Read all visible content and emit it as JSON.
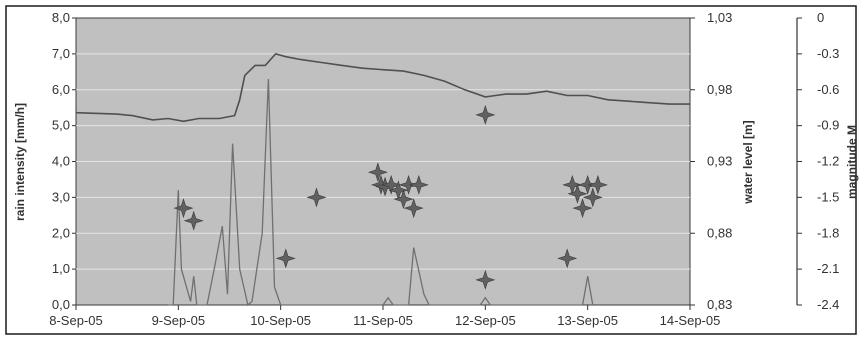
{
  "chart_data": {
    "type": "line",
    "x_tick_labels": [
      "8-Sep-05",
      "9-Sep-05",
      "10-Sep-05",
      "11-Sep-05",
      "12-Sep-05",
      "13-Sep-05",
      "14-Sep-05"
    ],
    "xlim": [
      0,
      6
    ],
    "left_axis": {
      "label": "rain intensity [mm/h]",
      "ylim": [
        0,
        8
      ],
      "tick_labels": [
        "0,0",
        "1,0",
        "2,0",
        "3,0",
        "4,0",
        "5,0",
        "6,0",
        "7,0",
        "8,0"
      ]
    },
    "middle_axis": {
      "label": "water level [m]",
      "ylim": [
        0.83,
        1.03
      ],
      "tick_labels": [
        "0,83",
        "0,88",
        "0,93",
        "0,98",
        "1,03"
      ]
    },
    "right_axis": {
      "label": "magnitude M",
      "ylim": [
        -2.4,
        0
      ],
      "tick_labels": [
        "-2.4",
        "-2.1",
        "-1.8",
        "-1.5",
        "-1.2",
        "-0.9",
        "-0.6",
        "-0.3",
        "0"
      ]
    },
    "plot_background": "#c0c0c0",
    "gridlines": "horizontal",
    "series": [
      {
        "axis": "water_level",
        "color": "#505050",
        "points": [
          [
            0.0,
            0.964
          ],
          [
            0.4,
            0.963
          ],
          [
            0.55,
            0.962
          ],
          [
            0.75,
            0.959
          ],
          [
            0.9,
            0.96
          ],
          [
            1.05,
            0.958
          ],
          [
            1.2,
            0.96
          ],
          [
            1.4,
            0.96
          ],
          [
            1.55,
            0.962
          ],
          [
            1.6,
            0.973
          ],
          [
            1.65,
            0.99
          ],
          [
            1.75,
            0.997
          ],
          [
            1.85,
            0.997
          ],
          [
            1.95,
            1.005
          ],
          [
            2.05,
            1.003
          ],
          [
            2.2,
            1.001
          ],
          [
            2.4,
            0.999
          ],
          [
            2.6,
            0.997
          ],
          [
            2.8,
            0.995
          ],
          [
            3.0,
            0.994
          ],
          [
            3.2,
            0.993
          ],
          [
            3.4,
            0.99
          ],
          [
            3.6,
            0.986
          ],
          [
            3.8,
            0.98
          ],
          [
            4.0,
            0.975
          ],
          [
            4.1,
            0.976
          ],
          [
            4.2,
            0.977
          ],
          [
            4.4,
            0.977
          ],
          [
            4.6,
            0.979
          ],
          [
            4.8,
            0.976
          ],
          [
            5.0,
            0.976
          ],
          [
            5.2,
            0.973
          ],
          [
            5.4,
            0.972
          ],
          [
            5.6,
            0.971
          ],
          [
            5.8,
            0.97
          ],
          [
            6.0,
            0.97
          ]
        ]
      },
      {
        "axis": "rain_intensity",
        "color": "#707070",
        "points": [
          [
            0.9,
            0.0
          ],
          [
            0.95,
            0.0
          ],
          [
            1.0,
            3.2
          ],
          [
            1.03,
            1.0
          ],
          [
            1.08,
            0.5
          ],
          [
            1.12,
            0.1
          ],
          [
            1.15,
            0.8
          ],
          [
            1.18,
            0.0
          ],
          [
            1.28,
            0.0
          ],
          [
            1.35,
            1.0
          ],
          [
            1.43,
            2.2
          ],
          [
            1.48,
            0.3
          ],
          [
            1.53,
            4.5
          ],
          [
            1.6,
            1.0
          ],
          [
            1.68,
            0.0
          ],
          [
            1.72,
            0.1
          ],
          [
            1.82,
            2.0
          ],
          [
            1.88,
            6.3
          ],
          [
            1.94,
            0.5
          ],
          [
            2.0,
            0.0
          ],
          [
            3.0,
            0.0
          ],
          [
            3.05,
            0.2
          ],
          [
            3.1,
            0.0
          ],
          [
            3.25,
            0.0
          ],
          [
            3.3,
            1.6
          ],
          [
            3.4,
            0.3
          ],
          [
            3.45,
            0.0
          ],
          [
            3.95,
            0.0
          ],
          [
            4.0,
            0.2
          ],
          [
            4.05,
            0.0
          ],
          [
            4.95,
            0.0
          ],
          [
            5.0,
            0.8
          ],
          [
            5.05,
            0.0
          ]
        ]
      },
      {
        "axis": "magnitude",
        "marker": "star",
        "color": "#606060",
        "points": [
          [
            1.05,
            2.7
          ],
          [
            1.15,
            2.35
          ],
          [
            2.05,
            1.3
          ],
          [
            2.35,
            3.0
          ],
          [
            2.95,
            3.7
          ],
          [
            2.98,
            3.35
          ],
          [
            3.02,
            3.3
          ],
          [
            3.08,
            3.35
          ],
          [
            3.15,
            3.2
          ],
          [
            3.2,
            2.95
          ],
          [
            3.25,
            3.35
          ],
          [
            3.3,
            2.7
          ],
          [
            3.35,
            3.35
          ],
          [
            4.0,
            5.3
          ],
          [
            4.0,
            0.7
          ],
          [
            4.8,
            1.3
          ],
          [
            4.85,
            3.35
          ],
          [
            4.9,
            3.1
          ],
          [
            4.95,
            2.7
          ],
          [
            5.0,
            3.35
          ],
          [
            5.05,
            3.0
          ],
          [
            5.1,
            3.35
          ]
        ]
      }
    ]
  }
}
